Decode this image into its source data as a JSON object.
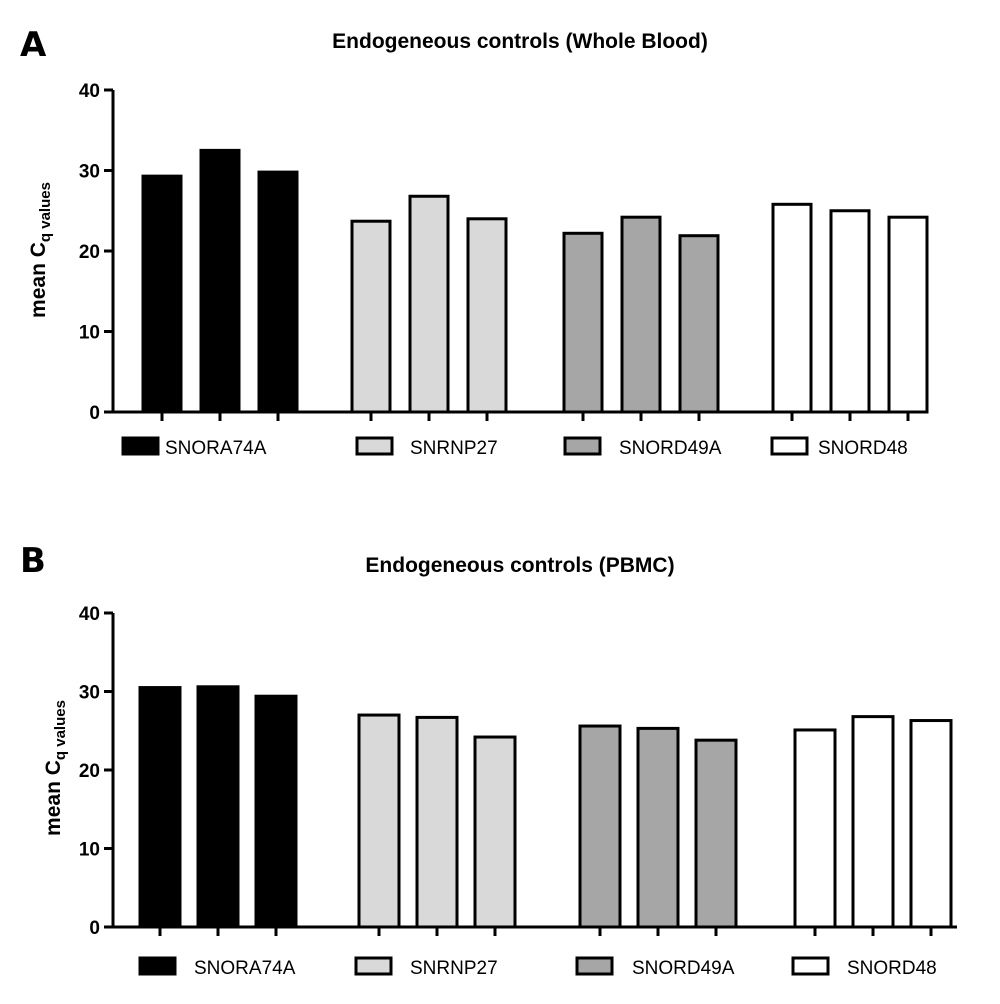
{
  "colors": {
    "SNORA74A": "#000000",
    "SNRNP27": "#d9d9d9",
    "SNORD49A": "#a6a6a6",
    "SNORD48": "#ffffff"
  },
  "chart_data": [
    {
      "panel_label": "A",
      "type": "bar",
      "title": "Endogeneous controls  (Whole Blood)",
      "ylabel_main": "mean C",
      "ylabel_sub": "q values",
      "ylim": [
        0,
        40
      ],
      "yticks": [
        "0",
        "10",
        "20",
        "30",
        "40"
      ],
      "grid": false,
      "legend_position": "bottom",
      "series": [
        {
          "name": "SNORA74A",
          "values": [
            29.3,
            32.5,
            29.8
          ]
        },
        {
          "name": "SNRNP27",
          "values": [
            23.7,
            26.8,
            24.0
          ]
        },
        {
          "name": "SNORD49A",
          "values": [
            22.2,
            24.2,
            21.9
          ]
        },
        {
          "name": "SNORD48",
          "values": [
            25.8,
            25.0,
            24.2
          ]
        }
      ]
    },
    {
      "panel_label": "B",
      "type": "bar",
      "title": "Endogeneous controls (PBMC)",
      "ylabel_main": "mean C",
      "ylabel_sub": "q values",
      "ylim": [
        0,
        40
      ],
      "yticks": [
        "0",
        "10",
        "20",
        "30",
        "40"
      ],
      "grid": false,
      "legend_position": "bottom",
      "series": [
        {
          "name": "SNORA74A",
          "values": [
            30.5,
            30.6,
            29.4
          ]
        },
        {
          "name": "SNRNP27",
          "values": [
            27.0,
            26.7,
            24.2
          ]
        },
        {
          "name": "SNORD49A",
          "values": [
            25.6,
            25.3,
            23.8
          ]
        },
        {
          "name": "SNORD48",
          "values": [
            25.1,
            26.8,
            26.3
          ]
        }
      ]
    }
  ]
}
